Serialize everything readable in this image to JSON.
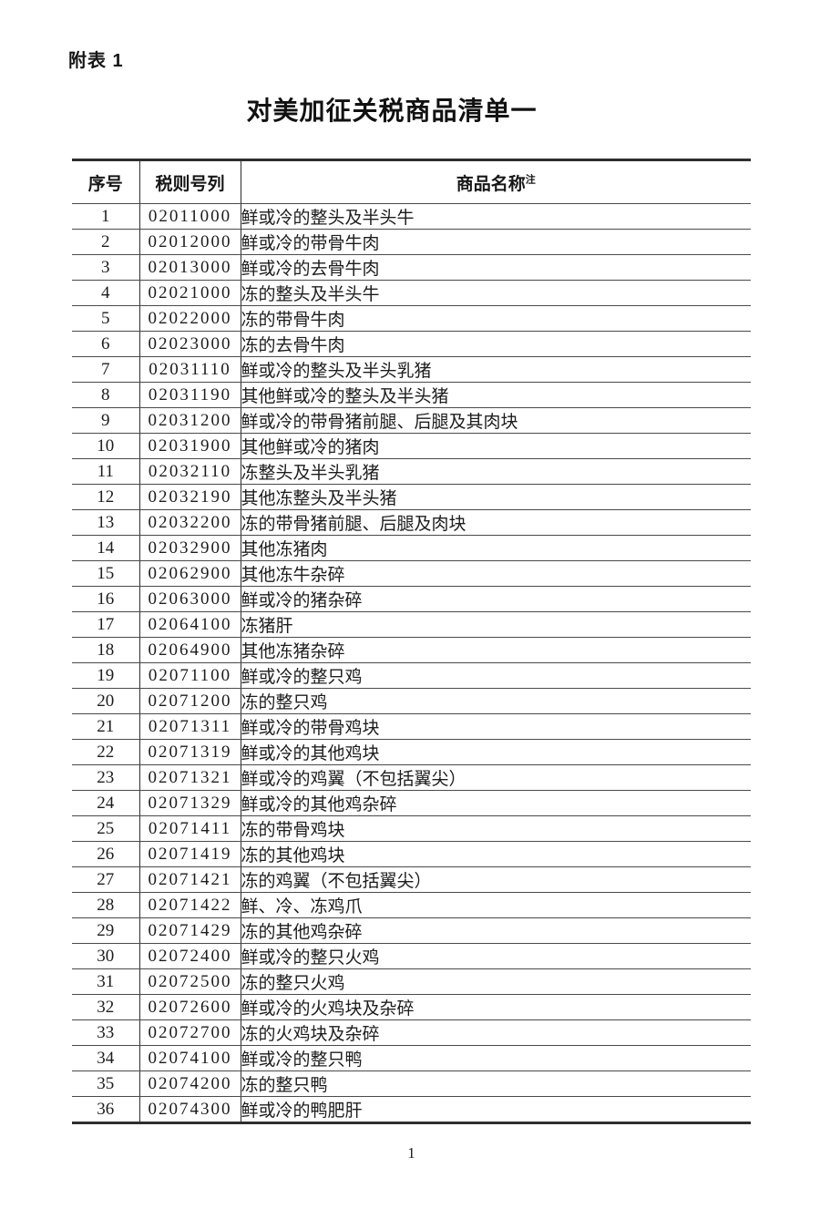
{
  "page": {
    "attachment_label": "附表 1",
    "title": "对美加征关税商品清单一",
    "page_number": "1"
  },
  "colors": {
    "background": "#ffffff",
    "text": "#1c1c1c",
    "border_heavy": "#2e2e2e",
    "border_light": "#4a4a4a"
  },
  "table": {
    "headers": {
      "index": "序号",
      "code": "税则号列",
      "name": "商品名称",
      "name_superscript": "注"
    },
    "rows": [
      {
        "index": "1",
        "code": "02011000",
        "name": "鲜或冷的整头及半头牛"
      },
      {
        "index": "2",
        "code": "02012000",
        "name": "鲜或冷的带骨牛肉"
      },
      {
        "index": "3",
        "code": "02013000",
        "name": "鲜或冷的去骨牛肉"
      },
      {
        "index": "4",
        "code": "02021000",
        "name": "冻的整头及半头牛"
      },
      {
        "index": "5",
        "code": "02022000",
        "name": "冻的带骨牛肉"
      },
      {
        "index": "6",
        "code": "02023000",
        "name": "冻的去骨牛肉"
      },
      {
        "index": "7",
        "code": "02031110",
        "name": "鲜或冷的整头及半头乳猪"
      },
      {
        "index": "8",
        "code": "02031190",
        "name": "其他鲜或冷的整头及半头猪"
      },
      {
        "index": "9",
        "code": "02031200",
        "name": "鲜或冷的带骨猪前腿、后腿及其肉块"
      },
      {
        "index": "10",
        "code": "02031900",
        "name": "其他鲜或冷的猪肉"
      },
      {
        "index": "11",
        "code": "02032110",
        "name": "冻整头及半头乳猪"
      },
      {
        "index": "12",
        "code": "02032190",
        "name": "其他冻整头及半头猪"
      },
      {
        "index": "13",
        "code": "02032200",
        "name": "冻的带骨猪前腿、后腿及肉块"
      },
      {
        "index": "14",
        "code": "02032900",
        "name": "其他冻猪肉"
      },
      {
        "index": "15",
        "code": "02062900",
        "name": "其他冻牛杂碎"
      },
      {
        "index": "16",
        "code": "02063000",
        "name": "鲜或冷的猪杂碎"
      },
      {
        "index": "17",
        "code": "02064100",
        "name": "冻猪肝"
      },
      {
        "index": "18",
        "code": "02064900",
        "name": "其他冻猪杂碎"
      },
      {
        "index": "19",
        "code": "02071100",
        "name": "鲜或冷的整只鸡"
      },
      {
        "index": "20",
        "code": "02071200",
        "name": "冻的整只鸡"
      },
      {
        "index": "21",
        "code": "02071311",
        "name": "鲜或冷的带骨鸡块"
      },
      {
        "index": "22",
        "code": "02071319",
        "name": "鲜或冷的其他鸡块"
      },
      {
        "index": "23",
        "code": "02071321",
        "name": "鲜或冷的鸡翼（不包括翼尖）"
      },
      {
        "index": "24",
        "code": "02071329",
        "name": "鲜或冷的其他鸡杂碎"
      },
      {
        "index": "25",
        "code": "02071411",
        "name": "冻的带骨鸡块"
      },
      {
        "index": "26",
        "code": "02071419",
        "name": "冻的其他鸡块"
      },
      {
        "index": "27",
        "code": "02071421",
        "name": "冻的鸡翼（不包括翼尖）"
      },
      {
        "index": "28",
        "code": "02071422",
        "name": "鲜、冷、冻鸡爪"
      },
      {
        "index": "29",
        "code": "02071429",
        "name": "冻的其他鸡杂碎"
      },
      {
        "index": "30",
        "code": "02072400",
        "name": "鲜或冷的整只火鸡"
      },
      {
        "index": "31",
        "code": "02072500",
        "name": "冻的整只火鸡"
      },
      {
        "index": "32",
        "code": "02072600",
        "name": "鲜或冷的火鸡块及杂碎"
      },
      {
        "index": "33",
        "code": "02072700",
        "name": "冻的火鸡块及杂碎"
      },
      {
        "index": "34",
        "code": "02074100",
        "name": "鲜或冷的整只鸭"
      },
      {
        "index": "35",
        "code": "02074200",
        "name": "冻的整只鸭"
      },
      {
        "index": "36",
        "code": "02074300",
        "name": "鲜或冷的鸭肥肝"
      }
    ]
  }
}
